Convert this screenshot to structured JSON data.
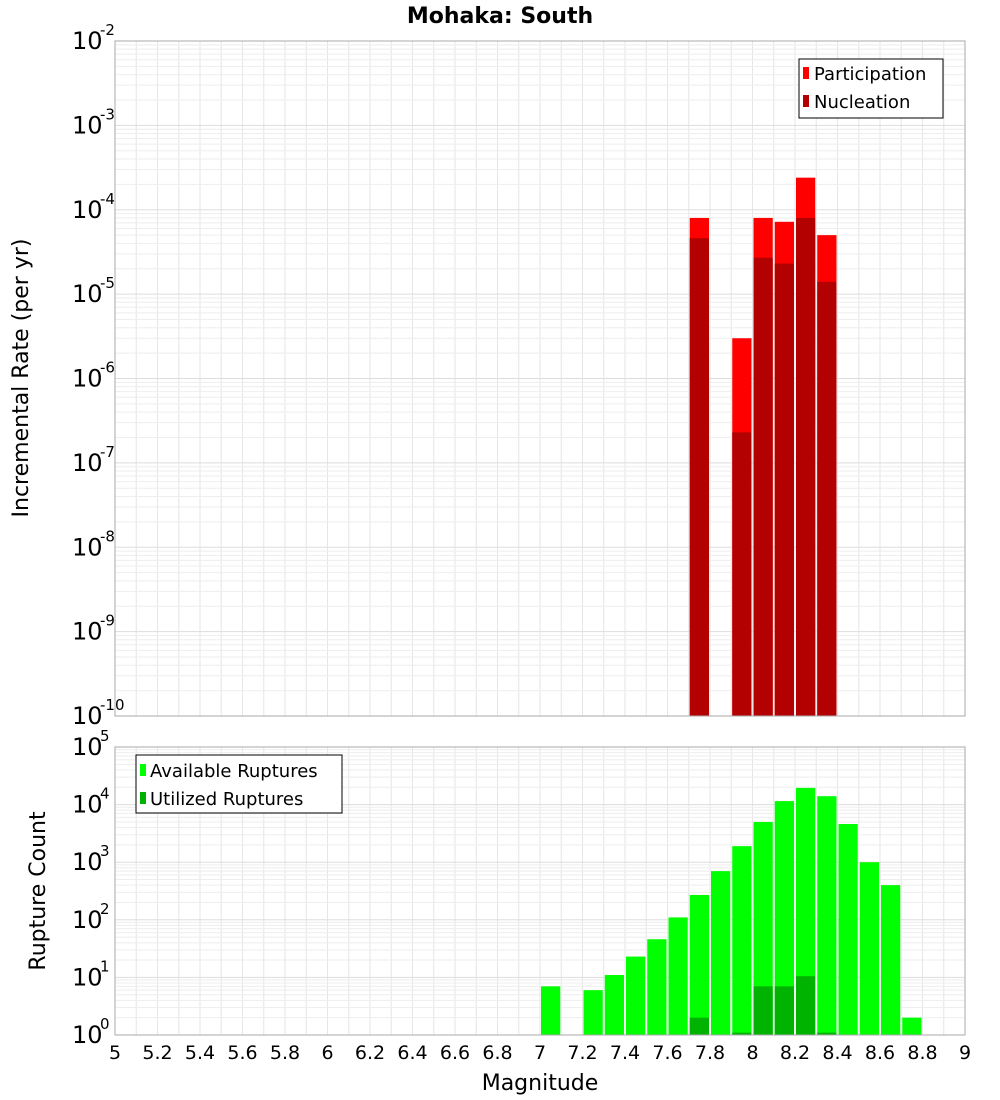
{
  "chart_data": [
    {
      "type": "bar",
      "title": "Mohaka: South",
      "xlabel": "Magnitude",
      "ylabel": "Incremental Rate (per yr)",
      "yscale": "log",
      "ylim_exponents": [
        -10,
        -2
      ],
      "ytick_exponents": [
        -10,
        -9,
        -8,
        -7,
        -6,
        -5,
        -4,
        -3,
        -2
      ],
      "xlim": [
        5,
        9
      ],
      "legend_position": "top-right",
      "series": [
        {
          "name": "Participation",
          "color": "#ff0000",
          "x": [
            7.75,
            7.95,
            8.05,
            8.15,
            8.25,
            8.35
          ],
          "values": [
            8e-05,
            3e-06,
            8e-05,
            7.2e-05,
            0.00024,
            5e-05
          ]
        },
        {
          "name": "Nucleation",
          "color": "#b30000",
          "x": [
            7.75,
            7.95,
            8.05,
            8.15,
            8.25,
            8.35
          ],
          "values": [
            4.6e-05,
            2.3e-07,
            2.7e-05,
            2.3e-05,
            8e-05,
            1.4e-05
          ]
        }
      ]
    },
    {
      "type": "bar",
      "title": "",
      "xlabel": "Magnitude",
      "ylabel": "Rupture Count",
      "yscale": "log",
      "ylim_exponents": [
        0,
        5
      ],
      "ytick_exponents": [
        0,
        1,
        2,
        3,
        4,
        5
      ],
      "xlim": [
        5,
        9
      ],
      "xticks": [
        "5",
        "5.2",
        "5.4",
        "5.6",
        "5.8",
        "6",
        "6.2",
        "6.4",
        "6.6",
        "6.8",
        "7",
        "7.2",
        "7.4",
        "7.6",
        "7.8",
        "8",
        "8.2",
        "8.4",
        "8.6",
        "8.8",
        "9"
      ],
      "legend_position": "top-left",
      "series": [
        {
          "name": "Available Ruptures",
          "color": "#00ff00",
          "x": [
            7.05,
            7.25,
            7.35,
            7.45,
            7.55,
            7.65,
            7.75,
            7.85,
            7.95,
            8.05,
            8.15,
            8.25,
            8.35,
            8.45,
            8.55,
            8.65,
            8.75
          ],
          "values": [
            7,
            6,
            11,
            23,
            46,
            110,
            270,
            700,
            1900,
            5000,
            11500,
            19500,
            14000,
            4600,
            1000,
            400,
            2
          ]
        },
        {
          "name": "Utilized Ruptures",
          "color": "#00b300",
          "x": [
            7.75,
            7.95,
            8.05,
            8.15,
            8.25,
            8.35
          ],
          "values": [
            2,
            1.1,
            7,
            7,
            10.5,
            1.1
          ]
        }
      ]
    }
  ]
}
